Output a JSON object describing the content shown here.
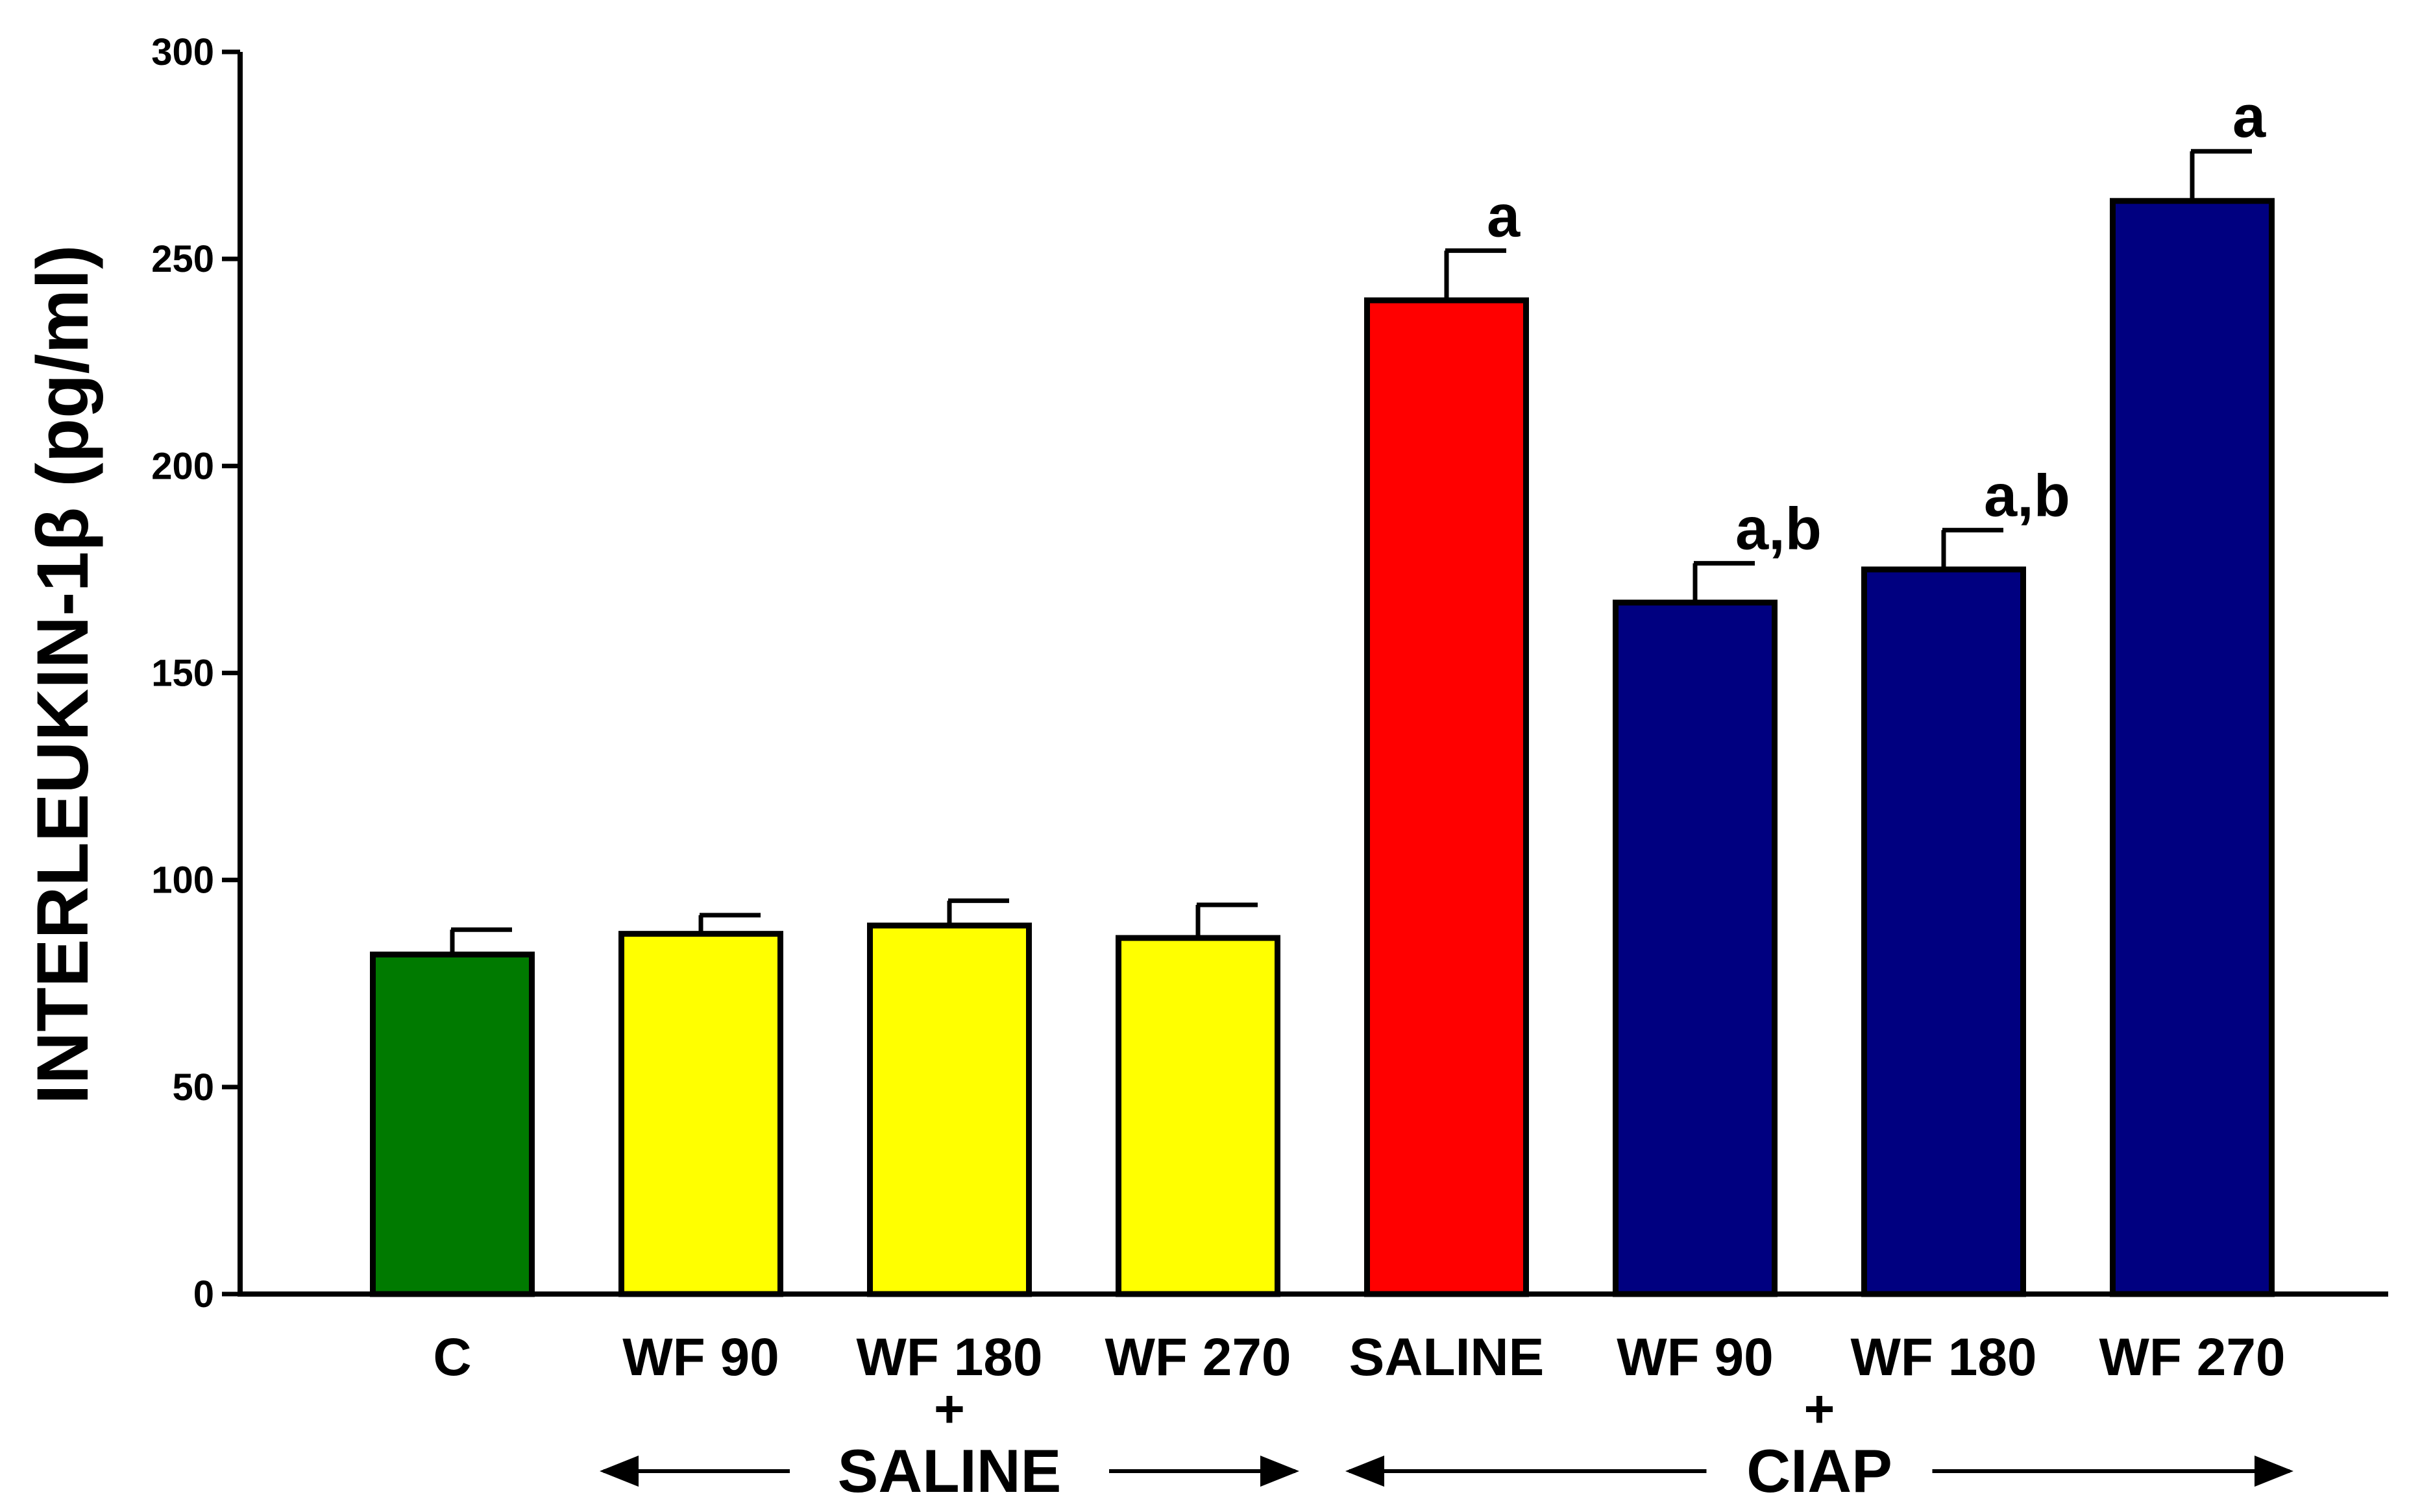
{
  "chart_data": {
    "type": "bar",
    "title": "",
    "xlabel": "",
    "ylabel": "INTERLEUKIN-1β (pg/ml)",
    "ylim": [
      0,
      300
    ],
    "yticks": [
      0,
      50,
      100,
      150,
      200,
      250,
      300
    ],
    "grid": false,
    "bars": [
      {
        "category": "C",
        "value": 82,
        "error": 6,
        "color": "#007a00",
        "annotation": ""
      },
      {
        "category": "WF 90",
        "value": 87,
        "error": 4.5,
        "color": "#ffff00",
        "annotation": ""
      },
      {
        "category": "WF 180",
        "value": 89,
        "error": 6,
        "color": "#ffff00",
        "annotation": ""
      },
      {
        "category": "WF 270",
        "value": 86,
        "error": 8,
        "color": "#ffff00",
        "annotation": ""
      },
      {
        "category": "SALINE",
        "value": 240,
        "error": 12,
        "color": "#ff0000",
        "annotation": "a"
      },
      {
        "category": "WF 90",
        "value": 167,
        "error": 9.5,
        "color": "#000080",
        "annotation": "a,b"
      },
      {
        "category": "WF 180",
        "value": 175,
        "error": 9.5,
        "color": "#000080",
        "annotation": "a,b"
      },
      {
        "category": "WF 270",
        "value": 264,
        "error": 12,
        "color": "#000080",
        "annotation": "a"
      }
    ],
    "groups": [
      {
        "label": "SALINE",
        "plus": "+",
        "from_bar": 1,
        "to_bar": 3
      },
      {
        "label": "CIAP",
        "plus": "+",
        "from_bar": 4,
        "to_bar": 7
      }
    ]
  }
}
